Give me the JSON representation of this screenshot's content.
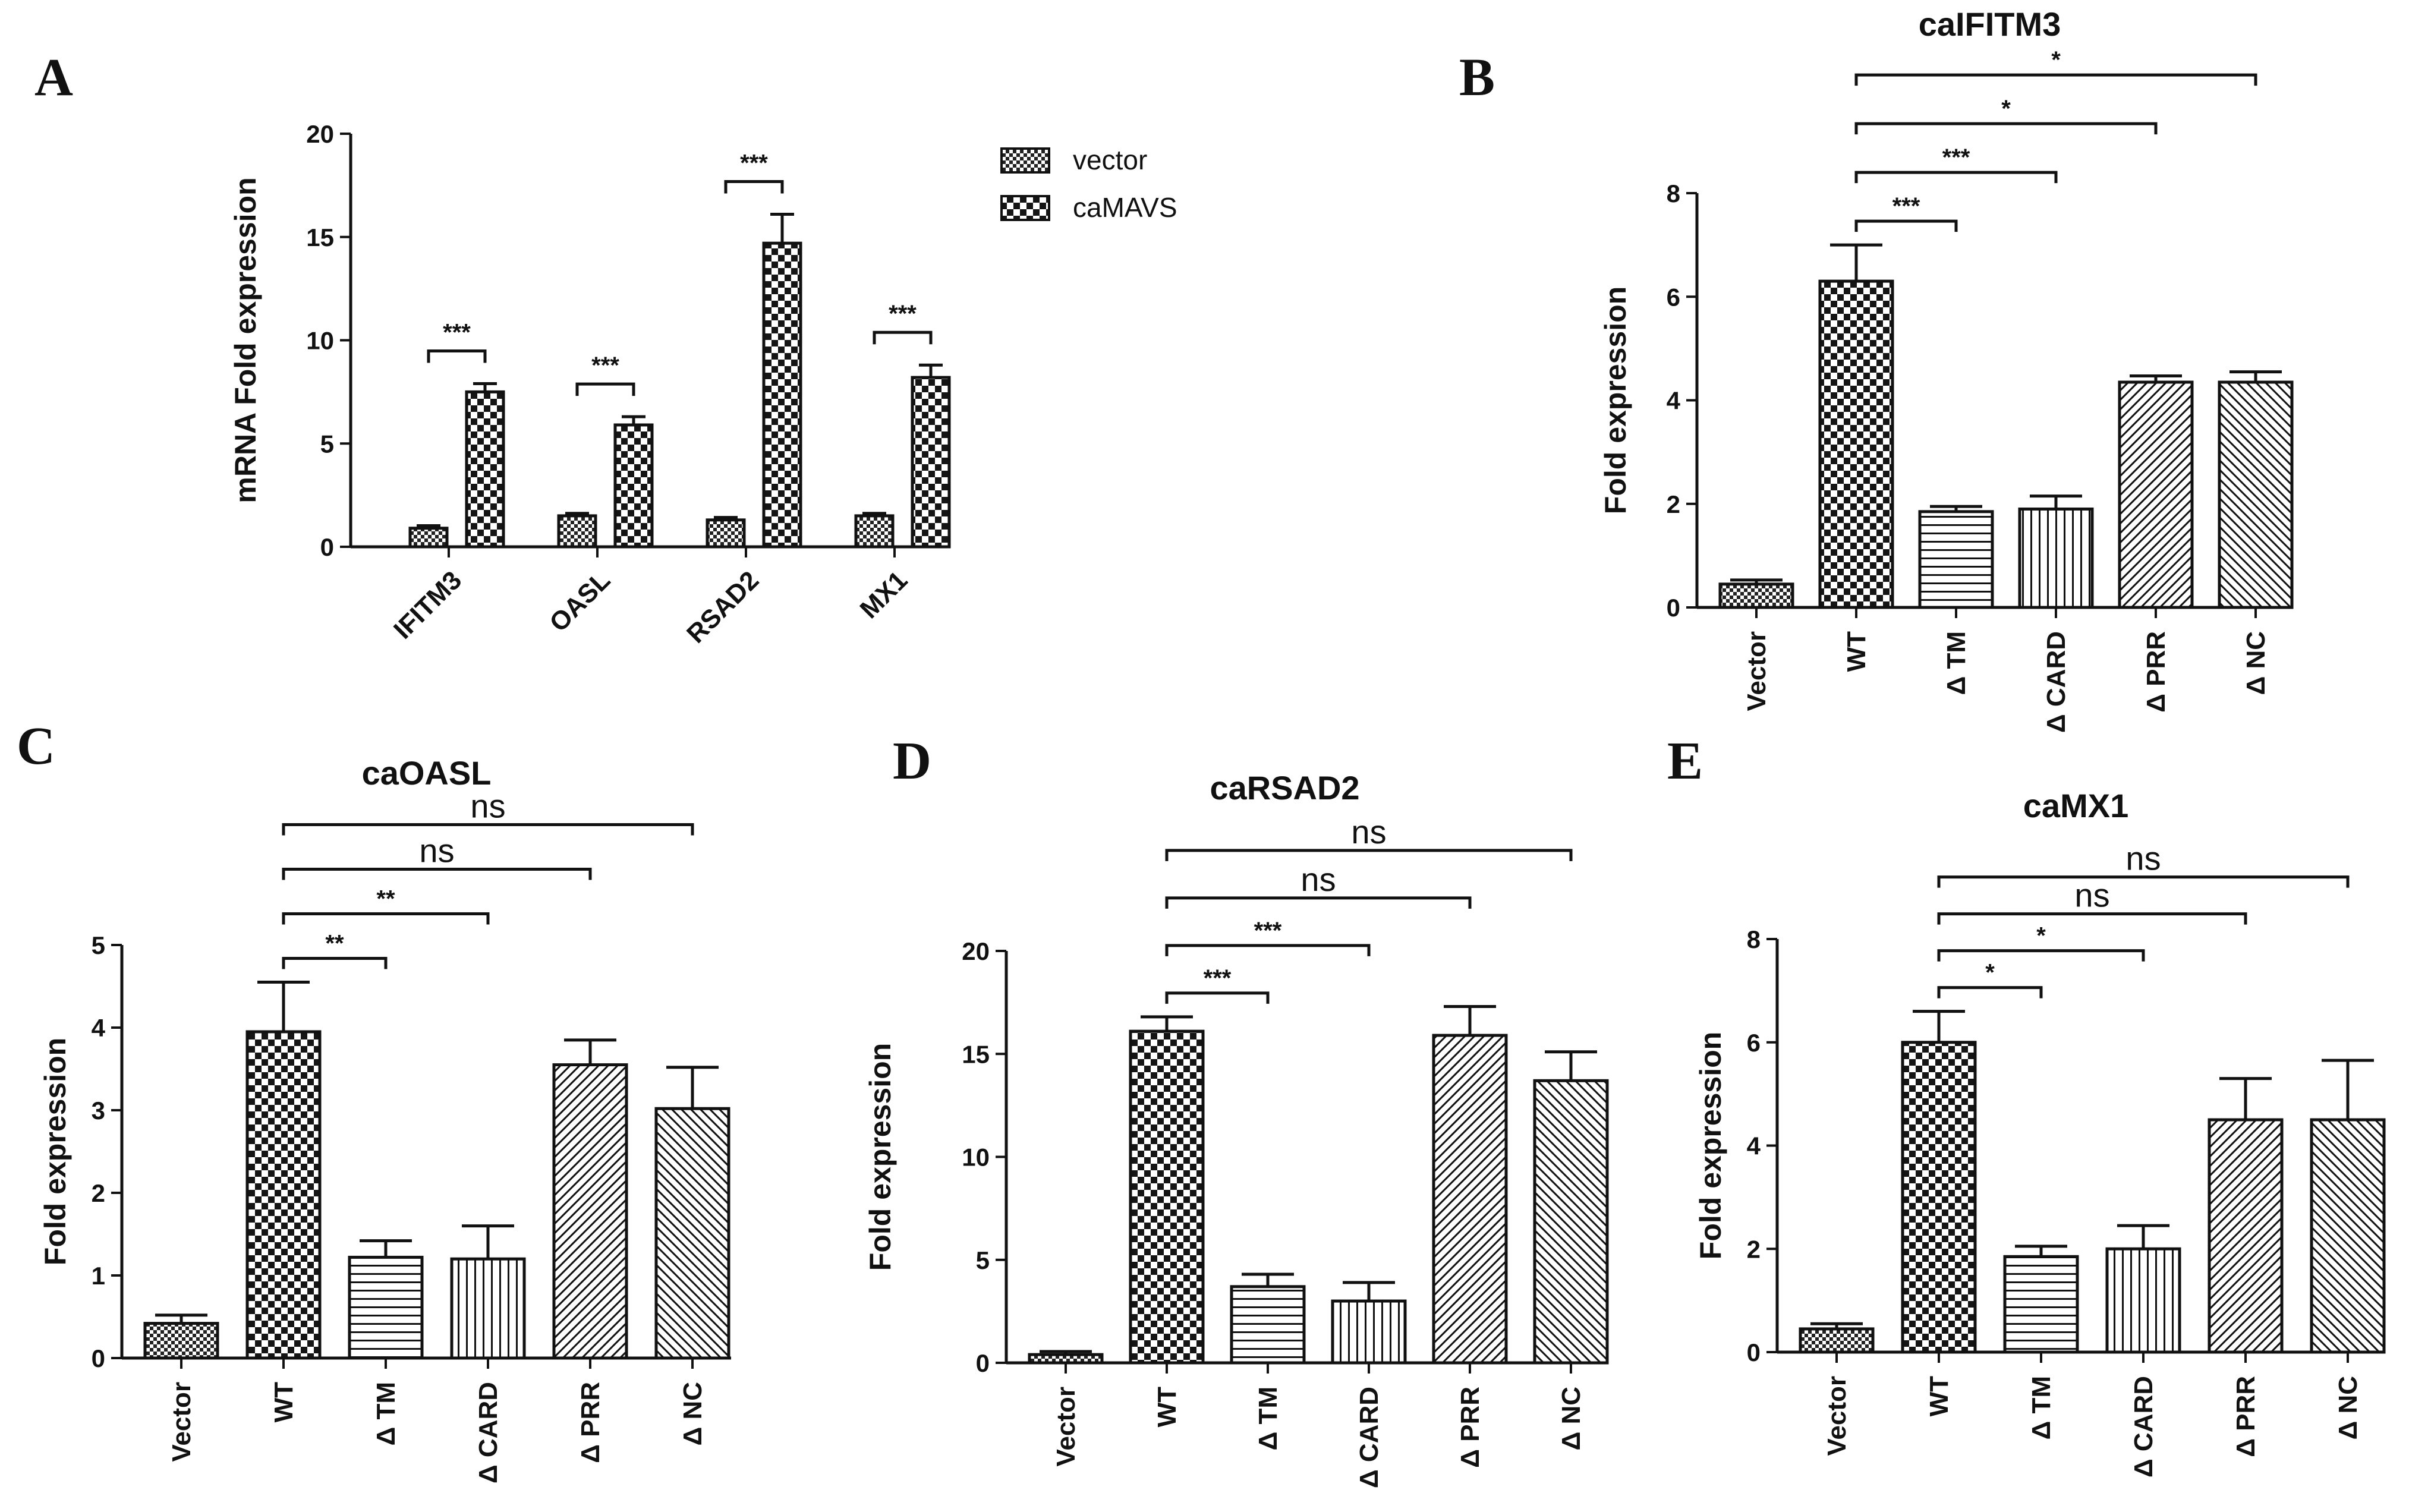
{
  "colors": {
    "ink": "#111111",
    "background": "#ffffff"
  },
  "panels": [
    "A",
    "B",
    "C",
    "D",
    "E"
  ],
  "chart_data": [
    {
      "panel": "A",
      "type": "bar",
      "title": "",
      "xlabel": "",
      "ylabel": "mRNA Fold expression",
      "ylim": [
        0,
        20
      ],
      "yticks": [
        0,
        5,
        10,
        15,
        20
      ],
      "categories": [
        "IFITM3",
        "OASL",
        "RSAD2",
        "MX1"
      ],
      "legend": {
        "position": "top-right",
        "entries": [
          "vector",
          "caMAVS"
        ]
      },
      "series": [
        {
          "name": "vector",
          "pattern": "dense-check",
          "values": [
            0.9,
            1.5,
            1.3,
            1.5
          ],
          "errors": [
            0.12,
            0.12,
            0.12,
            0.12
          ]
        },
        {
          "name": "caMAVS",
          "pattern": "check",
          "values": [
            7.5,
            5.9,
            14.7,
            8.2
          ],
          "errors": [
            0.4,
            0.4,
            1.4,
            0.6
          ]
        }
      ],
      "significance": [
        {
          "category": "IFITM3",
          "label": "***"
        },
        {
          "category": "OASL",
          "label": "***"
        },
        {
          "category": "RSAD2",
          "label": "***"
        },
        {
          "category": "MX1",
          "label": "***"
        }
      ]
    },
    {
      "panel": "B",
      "type": "bar",
      "title": "caIFITM3",
      "xlabel": "",
      "ylabel": "Fold expression",
      "ylim": [
        0,
        8
      ],
      "yticks": [
        0,
        2,
        4,
        6,
        8
      ],
      "categories": [
        "Vector",
        "WT",
        "Δ TM",
        "Δ CARD",
        "Δ PRR",
        "Δ NC"
      ],
      "patterns": [
        "dense-check",
        "check",
        "horizontal",
        "vertical",
        "diag-up",
        "diag-down"
      ],
      "values": [
        0.45,
        6.3,
        1.85,
        1.9,
        4.35,
        4.35
      ],
      "errors": [
        0.08,
        0.7,
        0.1,
        0.25,
        0.12,
        0.2
      ],
      "significance": [
        {
          "from": 1,
          "to": 2,
          "label": "***"
        },
        {
          "from": 1,
          "to": 3,
          "label": "***"
        },
        {
          "from": 1,
          "to": 4,
          "label": "*"
        },
        {
          "from": 1,
          "to": 5,
          "label": "*"
        }
      ]
    },
    {
      "panel": "C",
      "type": "bar",
      "title": "caOASL",
      "xlabel": "",
      "ylabel": "Fold expression",
      "ylim": [
        0,
        5
      ],
      "yticks": [
        0,
        1,
        2,
        3,
        4,
        5
      ],
      "categories": [
        "Vector",
        "WT",
        "Δ TM",
        "Δ CARD",
        "Δ PRR",
        "Δ NC"
      ],
      "patterns": [
        "dense-check",
        "check",
        "horizontal",
        "vertical",
        "diag-up",
        "diag-down"
      ],
      "values": [
        0.42,
        3.95,
        1.22,
        1.2,
        3.55,
        3.02
      ],
      "errors": [
        0.1,
        0.6,
        0.2,
        0.4,
        0.3,
        0.5
      ],
      "significance": [
        {
          "from": 1,
          "to": 2,
          "label": "**"
        },
        {
          "from": 1,
          "to": 3,
          "label": "**"
        },
        {
          "from": 1,
          "to": 4,
          "label": "ns"
        },
        {
          "from": 1,
          "to": 5,
          "label": "ns"
        }
      ]
    },
    {
      "panel": "D",
      "type": "bar",
      "title": "caRSAD2",
      "xlabel": "",
      "ylabel": "Fold expression",
      "ylim": [
        0,
        20
      ],
      "yticks": [
        0,
        5,
        10,
        15,
        20
      ],
      "categories": [
        "Vector",
        "WT",
        "Δ TM",
        "Δ CARD",
        "Δ PRR",
        "Δ NC"
      ],
      "patterns": [
        "dense-check",
        "check",
        "horizontal",
        "vertical",
        "diag-up",
        "diag-down"
      ],
      "values": [
        0.4,
        16.1,
        3.7,
        3.0,
        15.9,
        13.7
      ],
      "errors": [
        0.15,
        0.7,
        0.6,
        0.9,
        1.4,
        1.4
      ],
      "significance": [
        {
          "from": 1,
          "to": 2,
          "label": "***"
        },
        {
          "from": 1,
          "to": 3,
          "label": "***"
        },
        {
          "from": 1,
          "to": 4,
          "label": "ns"
        },
        {
          "from": 1,
          "to": 5,
          "label": "ns"
        }
      ]
    },
    {
      "panel": "E",
      "type": "bar",
      "title": "caMX1",
      "xlabel": "",
      "ylabel": "Fold expression",
      "ylim": [
        0,
        8
      ],
      "yticks": [
        0,
        2,
        4,
        6,
        8
      ],
      "categories": [
        "Vector",
        "WT",
        "Δ TM",
        "Δ CARD",
        "Δ PRR",
        "Δ NC"
      ],
      "patterns": [
        "dense-check",
        "check",
        "horizontal",
        "vertical",
        "diag-up",
        "diag-down"
      ],
      "values": [
        0.45,
        6.0,
        1.85,
        2.0,
        4.5,
        4.5
      ],
      "errors": [
        0.1,
        0.6,
        0.2,
        0.45,
        0.8,
        1.15
      ],
      "significance": [
        {
          "from": 1,
          "to": 2,
          "label": "*"
        },
        {
          "from": 1,
          "to": 3,
          "label": "*"
        },
        {
          "from": 1,
          "to": 4,
          "label": "ns"
        },
        {
          "from": 1,
          "to": 5,
          "label": "ns"
        }
      ]
    }
  ]
}
